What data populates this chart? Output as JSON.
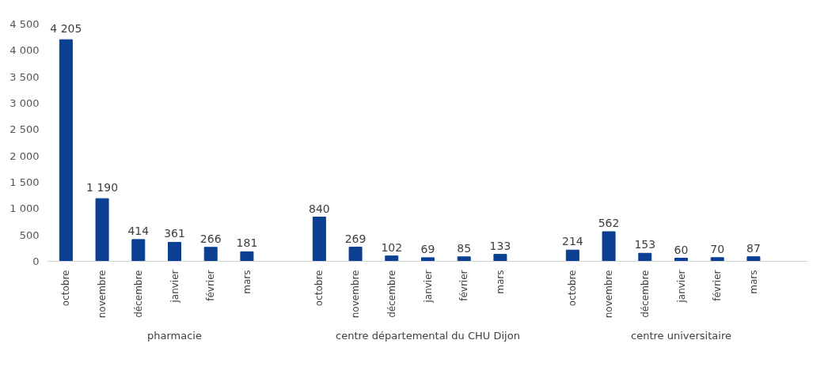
{
  "chart_data": {
    "type": "bar",
    "categories": [
      "octobre",
      "novembre",
      "décembre",
      "janvier",
      "février",
      "mars",
      null,
      "octobre",
      "novembre",
      "décembre",
      "janvier",
      "février",
      "mars",
      null,
      "octobre",
      "novembre",
      "décembre",
      "janvier",
      "février",
      "mars",
      null
    ],
    "values": [
      4205,
      1190,
      414,
      361,
      266,
      181,
      null,
      840,
      269,
      102,
      69,
      85,
      133,
      null,
      214,
      562,
      153,
      60,
      70,
      87,
      null
    ],
    "color": "#0a3f91",
    "data_labels": true,
    "ylim": [
      0,
      4500
    ],
    "yticks": [
      0,
      500,
      {
        "value": 1000,
        "label": "1 000"
      },
      {
        "value": 1500,
        "label": "1 500"
      },
      {
        "value": 2000,
        "label": "2 000"
      },
      {
        "value": 2500,
        "label": "2 500"
      },
      {
        "value": 3000,
        "label": "3 000"
      },
      {
        "value": 3500,
        "label": "3 500"
      },
      {
        "value": 4000,
        "label": "4 000"
      },
      {
        "value": 4500,
        "label": "4 500"
      }
    ],
    "grid": false,
    "annotations": [
      "pharmacie",
      "centre départemental du CHU Dijon",
      "centre universitaire"
    ]
  }
}
